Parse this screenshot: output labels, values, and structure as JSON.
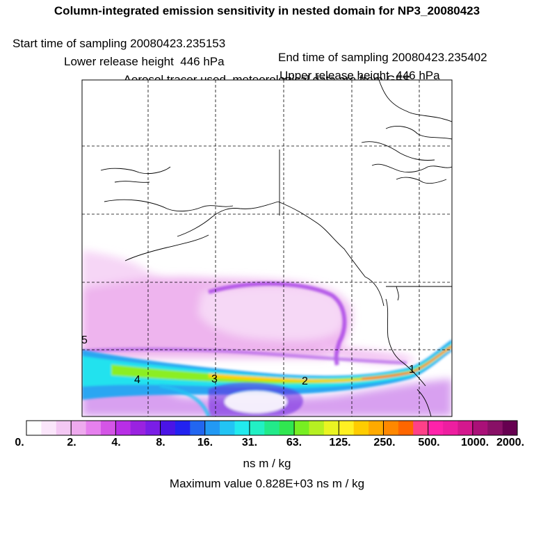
{
  "header": {
    "title": "Column-integrated emission sensitivity in nested domain for NP3_20080423",
    "start_label": "Start time of sampling 20080423.235153",
    "end_label": "End time of sampling 20080423.235402",
    "lower_label": "Lower release height  446 hPa",
    "upper_label": "Upper release height  446 hPa",
    "tracer_label": "Aerosol tracer used, meteorological data are from GFS"
  },
  "map": {
    "point_labels": [
      "1",
      "2",
      "3",
      "4",
      "5"
    ]
  },
  "colorbar": {
    "tick_labels": [
      "0.",
      "2.",
      "4.",
      "8.",
      "16.",
      "31.",
      "63.",
      "125.",
      "250.",
      "500.",
      "1000.",
      "2000."
    ],
    "colors": [
      "#ffffff",
      "#fbe6fb",
      "#f4c8f4",
      "#eeaaee",
      "#e680ee",
      "#d455e6",
      "#b82ee6",
      "#9a22e0",
      "#7a1ee6",
      "#4a14e6",
      "#2222f0",
      "#2266f0",
      "#2299f4",
      "#22c4f4",
      "#22eaee",
      "#22f0c4",
      "#22ea8a",
      "#30e650",
      "#77ee22",
      "#b6f022",
      "#eaf422",
      "#fff022",
      "#ffcc00",
      "#ffaa00",
      "#ff8800",
      "#ff6600",
      "#ff4088",
      "#ff22aa",
      "#ee1ea0",
      "#d4188e",
      "#aa1078",
      "#881066",
      "#660050"
    ]
  },
  "units": "ns m / kg",
  "max_value": "Maximum value  0.828E+03 ns m / kg"
}
